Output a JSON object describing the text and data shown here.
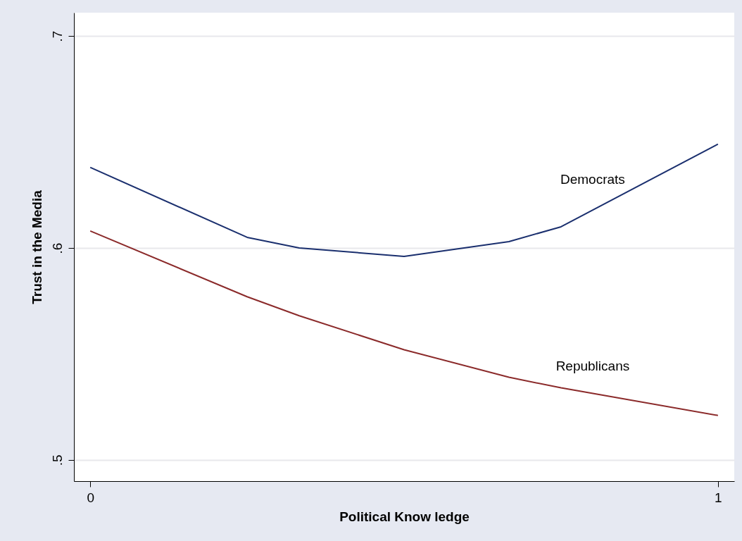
{
  "chart_data": {
    "type": "line",
    "xlabel": "Political Know ledge",
    "ylabel": "Trust in the Media",
    "x": [
      0,
      0.25,
      0.333,
      0.5,
      0.667,
      0.75,
      1
    ],
    "series": [
      {
        "name": "Democrats",
        "color": "#1a2f6e",
        "values": [
          0.638,
          0.605,
          0.6,
          0.596,
          0.603,
          0.61,
          0.649
        ]
      },
      {
        "name": "Republicans",
        "color": "#8b2a2a",
        "values": [
          0.608,
          0.577,
          0.568,
          0.552,
          0.539,
          0.534,
          0.521
        ]
      }
    ],
    "xlim": [
      -0.026,
      1.026
    ],
    "ylim": [
      0.49,
      0.711
    ],
    "xticks": [
      0,
      1
    ],
    "yticks": [
      {
        "value": 0.5,
        "label": ".5"
      },
      {
        "value": 0.6,
        "label": ".6"
      },
      {
        "value": 0.7,
        "label": ".7"
      }
    ],
    "grid": "y",
    "legend": false,
    "marker": "none",
    "line_style": "solid"
  }
}
